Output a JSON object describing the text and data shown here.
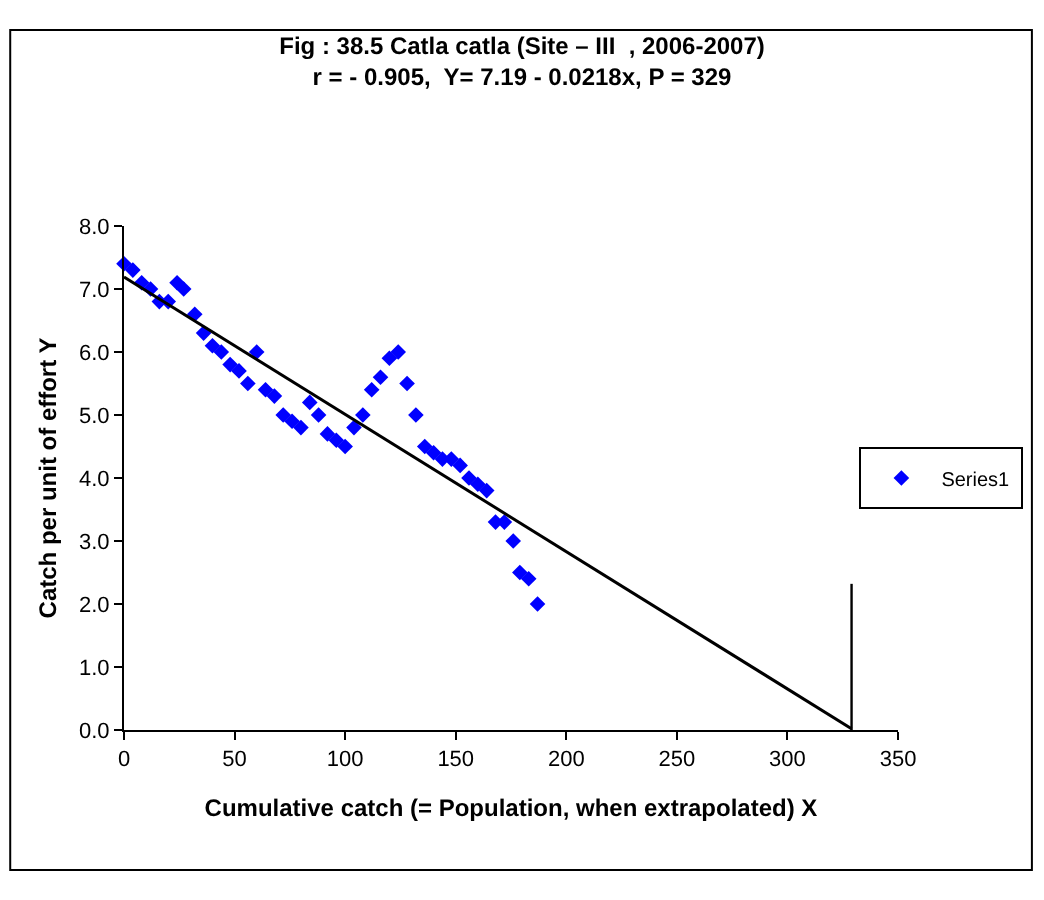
{
  "chart_data": {
    "type": "scatter",
    "title": "Fig : 38.5 Catla catla (Site – III  , 2006-2007)",
    "subtitle": "r = - 0.905,  Y= 7.19 - 0.0218x, P = 329",
    "xlabel": "Cumulative catch (= Population, when extrapolated) X",
    "ylabel": "Catch per unit of effort Y",
    "series": [
      {
        "name": "Series1",
        "color": "#0000ff",
        "marker": "diamond",
        "x": [
          0,
          4,
          8,
          12,
          16,
          20,
          24,
          27,
          32,
          36,
          40,
          44,
          48,
          52,
          56,
          60,
          64,
          68,
          72,
          76,
          80,
          84,
          88,
          92,
          96,
          100,
          104,
          108,
          112,
          116,
          120,
          124,
          128,
          132,
          136,
          140,
          144,
          148,
          152,
          156,
          160,
          164,
          168,
          172,
          176,
          179,
          183,
          187
        ],
        "values": [
          7.4,
          7.3,
          7.1,
          7.0,
          6.8,
          6.8,
          7.1,
          7.0,
          6.6,
          6.3,
          6.1,
          6.0,
          5.8,
          5.7,
          5.5,
          6.0,
          5.4,
          5.3,
          5.0,
          4.9,
          4.8,
          5.2,
          5.0,
          4.7,
          4.6,
          4.5,
          4.8,
          5.0,
          5.4,
          5.6,
          5.9,
          6.0,
          5.5,
          5.0,
          4.5,
          4.4,
          4.3,
          4.3,
          4.2,
          4.0,
          3.9,
          3.8,
          3.3,
          3.3,
          3.0,
          2.5,
          2.4,
          2.0
        ]
      },
      {
        "type": "line",
        "color": "#000000",
        "marker": "none",
        "line_style": "solid",
        "x": [
          0,
          329
        ],
        "values": [
          7.19,
          0.02
        ]
      }
    ],
    "ref_lines": [
      {
        "axis": "x",
        "value": 329,
        "color": "#000000"
      }
    ],
    "xlim": [
      0,
      350
    ],
    "xticks": [
      0,
      50,
      100,
      150,
      200,
      250,
      300,
      350
    ],
    "ylim": [
      0,
      8
    ],
    "yticks": [
      {
        "value": 0,
        "label": "0.0"
      },
      {
        "value": 1,
        "label": "1.0"
      },
      {
        "value": 2,
        "label": "2.0"
      },
      {
        "value": 3,
        "label": "3.0"
      },
      {
        "value": 4,
        "label": "4.0"
      },
      {
        "value": 5,
        "label": "5.0"
      },
      {
        "value": 6,
        "label": "6.0"
      },
      {
        "value": 7,
        "label": "7.0"
      },
      {
        "value": 8,
        "label": "8.0"
      }
    ],
    "legend": "right"
  }
}
